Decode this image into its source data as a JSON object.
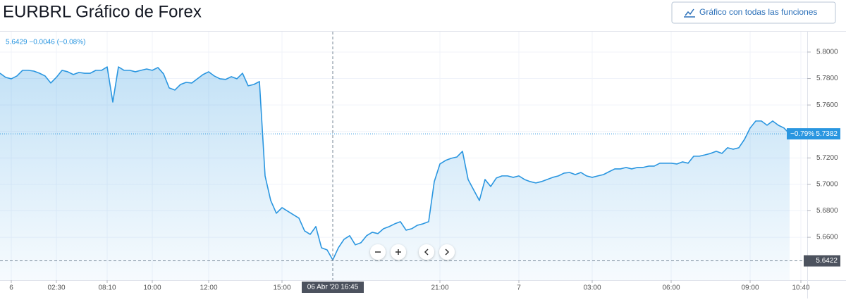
{
  "header": {
    "title": "EURBRL Gráfico de Forex",
    "button": "Gráfico con todas las funciones"
  },
  "chart_data": {
    "type": "line",
    "legend_text": "5.6429 −0.0046 (−0.08%)",
    "color": "#2a96e0",
    "categories": [
      null,
      null,
      "6",
      null,
      null,
      null,
      null,
      null,
      null,
      null,
      "02:30",
      null,
      null,
      null,
      null,
      null,
      null,
      null,
      null,
      "08:10",
      null,
      null,
      null,
      null,
      null,
      null,
      null,
      "10:00",
      null,
      null,
      null,
      null,
      null,
      null,
      null,
      null,
      null,
      "12:00",
      null,
      null,
      null,
      null,
      null,
      null,
      null,
      null,
      null,
      null,
      null,
      null,
      "15:00",
      null,
      null,
      null,
      null,
      null,
      null,
      null,
      null,
      null,
      null,
      null,
      null,
      null,
      null,
      null,
      null,
      null,
      null,
      null,
      null,
      null,
      null,
      null,
      null,
      null,
      null,
      null,
      "21:00",
      null,
      null,
      null,
      null,
      null,
      null,
      null,
      null,
      null,
      null,
      null,
      null,
      null,
      "7",
      null,
      null,
      null,
      null,
      null,
      null,
      null,
      null,
      null,
      null,
      null,
      null,
      "03:00",
      null,
      null,
      null,
      null,
      null,
      null,
      null,
      null,
      null,
      null,
      null,
      null,
      null,
      "06:00",
      null,
      null,
      null,
      null,
      null,
      null,
      null,
      null,
      null,
      null,
      null,
      null,
      null,
      "09:00",
      null,
      null,
      null,
      null,
      null,
      null,
      null,
      null,
      "10:40"
    ],
    "values": [
      5.784,
      5.7809,
      5.7798,
      5.7819,
      5.7862,
      5.7862,
      5.7856,
      5.784,
      5.7819,
      5.7766,
      5.7809,
      5.7862,
      5.7851,
      5.783,
      5.7846,
      5.784,
      5.784,
      5.7862,
      5.7862,
      5.7888,
      5.7622,
      5.7888,
      5.7862,
      5.7862,
      5.7851,
      5.7862,
      5.7872,
      5.7862,
      5.7883,
      5.7835,
      5.7729,
      5.7713,
      5.7755,
      5.7771,
      5.7766,
      5.7798,
      5.783,
      5.7851,
      5.7819,
      5.7798,
      5.7793,
      5.7814,
      5.7798,
      5.784,
      5.7745,
      5.7755,
      5.7777,
      5.7064,
      5.6878,
      5.6782,
      5.6824,
      5.6798,
      5.6771,
      5.6745,
      5.6649,
      5.6622,
      5.6681,
      5.6521,
      5.6505,
      5.6429,
      5.6521,
      5.6585,
      5.6612,
      5.6543,
      5.6559,
      5.6612,
      5.6638,
      5.6628,
      5.6665,
      5.6681,
      5.6702,
      5.6718,
      5.6654,
      5.6665,
      5.6691,
      5.6702,
      5.6718,
      5.7021,
      5.7154,
      5.7181,
      5.7197,
      5.7207,
      5.725,
      5.7037,
      5.6957,
      5.6878,
      5.7037,
      5.6984,
      5.7048,
      5.7064,
      5.7064,
      5.7053,
      5.7064,
      5.7037,
      5.7021,
      5.7011,
      5.7021,
      5.7037,
      5.7053,
      5.7064,
      5.7085,
      5.709,
      5.7074,
      5.709,
      5.7064,
      5.7053,
      5.7064,
      5.7074,
      5.7096,
      5.7117,
      5.7117,
      5.7128,
      5.7117,
      5.7128,
      5.7128,
      5.7138,
      5.7138,
      5.716,
      5.716,
      5.716,
      5.7154,
      5.717,
      5.716,
      5.7213,
      5.7213,
      5.7223,
      5.7234,
      5.725,
      5.7234,
      5.7277,
      5.7266,
      5.7277,
      5.734,
      5.7426,
      5.7479,
      5.7479,
      5.7447,
      5.7479,
      5.7447,
      5.7426,
      5.7382,
      null,
      null
    ],
    "last_change": "−0.79%",
    "crosshair_label": "06 Abr '20 16:45",
    "crosshair_value": 5.6422,
    "ylim": [
      5.6276,
      5.8154
    ],
    "yticks": [
      {
        "value": 5.66,
        "label": "5.6600"
      },
      {
        "value": 5.68,
        "label": "5.6800"
      },
      {
        "value": 5.7,
        "label": "5.7000"
      },
      {
        "value": 5.72,
        "label": "5.7200"
      },
      {
        "value": 5.74,
        "label": "5.7400"
      },
      {
        "value": 5.76,
        "label": "5.7600"
      },
      {
        "value": 5.78,
        "label": "5.7800"
      },
      {
        "value": 5.8,
        "label": "5.8000"
      }
    ],
    "grid": true
  }
}
